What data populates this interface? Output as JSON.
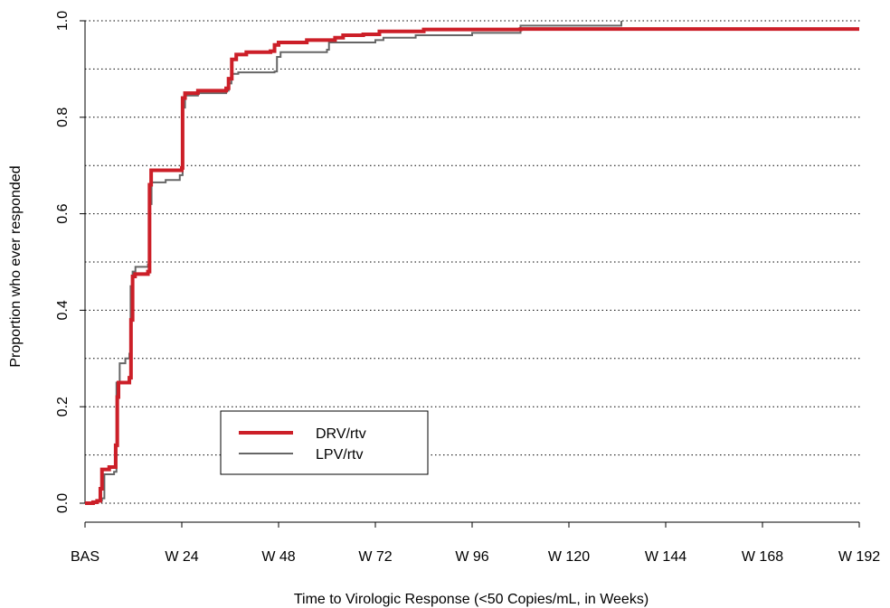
{
  "chart_data": {
    "type": "line",
    "xlabel": "Time to Virologic Response (<50 Copies/mL, in Weeks)",
    "ylabel": "Proportion who ever responded",
    "xlim": [
      0,
      192
    ],
    "ylim": [
      0,
      1
    ],
    "x_ticks": [
      {
        "value": 0,
        "label": "BAS"
      },
      {
        "value": 24,
        "label": "W 24"
      },
      {
        "value": 48,
        "label": "W 48"
      },
      {
        "value": 72,
        "label": "W 72"
      },
      {
        "value": 96,
        "label": "W 96"
      },
      {
        "value": 120,
        "label": "W 120"
      },
      {
        "value": 144,
        "label": "W 144"
      },
      {
        "value": 168,
        "label": "W 168"
      },
      {
        "value": 192,
        "label": "W 192"
      }
    ],
    "y_ticks": [
      {
        "value": 0.0,
        "label": "0.0"
      },
      {
        "value": 0.2,
        "label": "0.2"
      },
      {
        "value": 0.4,
        "label": "0.4"
      },
      {
        "value": 0.6,
        "label": "0.6"
      },
      {
        "value": 0.8,
        "label": "0.8"
      },
      {
        "value": 1.0,
        "label": "1.0"
      }
    ],
    "grid": {
      "horizontal": true,
      "style": "dotted",
      "levels": [
        0.0,
        0.1,
        0.2,
        0.3,
        0.4,
        0.5,
        0.6,
        0.7,
        0.8,
        0.9,
        1.0
      ]
    },
    "legend": {
      "position": "bottom-left",
      "entries": [
        "DRV/rtv",
        "LPV/rtv"
      ]
    },
    "series": [
      {
        "name": "DRV/rtv",
        "color": "#cc1f28",
        "step": true,
        "points": [
          [
            0,
            0.0
          ],
          [
            2,
            0.002
          ],
          [
            3,
            0.005
          ],
          [
            3.8,
            0.03
          ],
          [
            4.2,
            0.07
          ],
          [
            6,
            0.075
          ],
          [
            7.6,
            0.12
          ],
          [
            8.0,
            0.22
          ],
          [
            8.3,
            0.25
          ],
          [
            11,
            0.26
          ],
          [
            11.4,
            0.38
          ],
          [
            11.8,
            0.47
          ],
          [
            12.4,
            0.475
          ],
          [
            15.6,
            0.48
          ],
          [
            16.0,
            0.66
          ],
          [
            16.4,
            0.69
          ],
          [
            24,
            0.695
          ],
          [
            24.2,
            0.84
          ],
          [
            24.8,
            0.85
          ],
          [
            28,
            0.855
          ],
          [
            35,
            0.86
          ],
          [
            35.6,
            0.88
          ],
          [
            36.4,
            0.92
          ],
          [
            37.5,
            0.93
          ],
          [
            40,
            0.935
          ],
          [
            46,
            0.937
          ],
          [
            47,
            0.95
          ],
          [
            48,
            0.955
          ],
          [
            55,
            0.96
          ],
          [
            62,
            0.965
          ],
          [
            64,
            0.97
          ],
          [
            69,
            0.972
          ],
          [
            72,
            0.972
          ],
          [
            73,
            0.978
          ],
          [
            84,
            0.982
          ],
          [
            108,
            0.983
          ],
          [
            192,
            0.983
          ]
        ]
      },
      {
        "name": "LPV/rtv",
        "color": "#666666",
        "step": true,
        "points": [
          [
            0,
            0.0
          ],
          [
            3,
            0.005
          ],
          [
            4.2,
            0.01
          ],
          [
            4.8,
            0.06
          ],
          [
            7.2,
            0.065
          ],
          [
            7.8,
            0.25
          ],
          [
            8.6,
            0.29
          ],
          [
            10,
            0.3
          ],
          [
            11,
            0.31
          ],
          [
            11.3,
            0.45
          ],
          [
            11.8,
            0.48
          ],
          [
            12.5,
            0.49
          ],
          [
            15.6,
            0.495
          ],
          [
            16.0,
            0.62
          ],
          [
            16.5,
            0.665
          ],
          [
            20,
            0.67
          ],
          [
            23.5,
            0.68
          ],
          [
            24.2,
            0.82
          ],
          [
            24.8,
            0.845
          ],
          [
            28,
            0.85
          ],
          [
            35,
            0.855
          ],
          [
            35.6,
            0.87
          ],
          [
            36.3,
            0.89
          ],
          [
            38,
            0.893
          ],
          [
            47,
            0.895
          ],
          [
            47.6,
            0.925
          ],
          [
            48.5,
            0.935
          ],
          [
            52,
            0.935
          ],
          [
            60,
            0.94
          ],
          [
            60.5,
            0.955
          ],
          [
            72,
            0.96
          ],
          [
            74,
            0.965
          ],
          [
            82,
            0.97
          ],
          [
            96,
            0.975
          ],
          [
            108,
            0.99
          ],
          [
            133,
            1.0
          ]
        ]
      }
    ]
  }
}
